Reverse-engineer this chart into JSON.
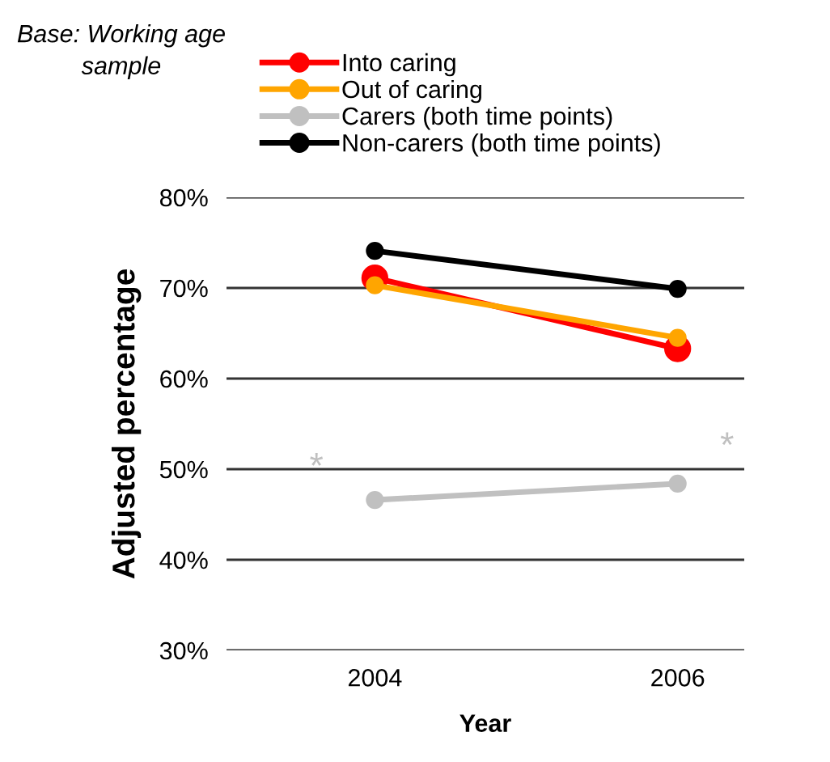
{
  "chart_data": {
    "type": "line",
    "categories": [
      "2004",
      "2006"
    ],
    "series": [
      {
        "name": "Into caring",
        "color": "#ff0000",
        "values": [
          71.1,
          63.3
        ]
      },
      {
        "name": "Out of caring",
        "color": "#ffa500",
        "values": [
          70.3,
          64.5
        ]
      },
      {
        "name": "Carers (both time points)",
        "color": "#c0c0c0",
        "values": [
          46.6,
          48.4
        ]
      },
      {
        "name": "Non-carers (both time points)",
        "color": "#000000",
        "values": [
          74.1,
          69.9
        ]
      }
    ],
    "xlabel": "Year",
    "ylabel": "Adjusted percentage",
    "ylim": [
      30,
      80
    ],
    "yticks": [
      {
        "value": 30,
        "label": "30%"
      },
      {
        "value": 40,
        "label": "40%"
      },
      {
        "value": 50,
        "label": "50%"
      },
      {
        "value": 60,
        "label": "60%"
      },
      {
        "value": 70,
        "label": "70%"
      },
      {
        "value": 80,
        "label": "80%"
      }
    ],
    "grid": "y",
    "legend": "top",
    "marker": "circle",
    "line_style": "solid",
    "annotations": [
      "Base: Working age sample",
      {
        "text": "*",
        "x": "2004",
        "y": 46.6
      },
      {
        "text": "*",
        "x": "2006",
        "y": 48.4
      }
    ]
  }
}
